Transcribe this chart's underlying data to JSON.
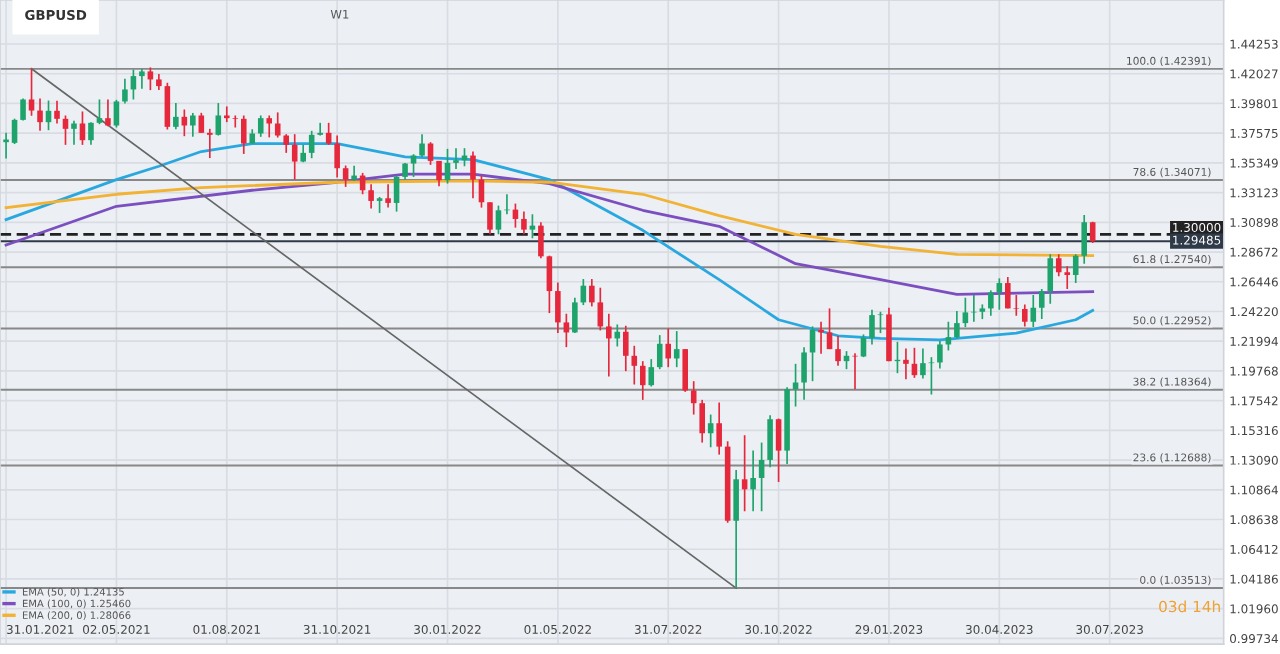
{
  "chart_data": {
    "type": "candlestick",
    "title": "GBPUSD",
    "subtitle": "W1",
    "x": [
      "2021-01-31",
      "2021-02-07",
      "2021-02-14",
      "2021-02-21",
      "2021-02-28",
      "2021-03-07",
      "2021-03-14",
      "2021-03-21",
      "2021-03-28",
      "2021-04-04",
      "2021-04-11",
      "2021-04-18",
      "2021-04-25",
      "2021-05-02",
      "2021-05-09",
      "2021-05-16",
      "2021-05-23",
      "2021-05-30",
      "2021-06-06",
      "2021-06-13",
      "2021-06-20",
      "2021-06-27",
      "2021-07-04",
      "2021-07-11",
      "2021-07-18",
      "2021-07-25",
      "2021-08-01",
      "2021-08-08",
      "2021-08-15",
      "2021-08-22",
      "2021-08-29",
      "2021-09-05",
      "2021-09-12",
      "2021-09-19",
      "2021-09-26",
      "2021-10-03",
      "2021-10-10",
      "2021-10-17",
      "2021-10-24",
      "2021-10-31",
      "2021-11-07",
      "2021-11-14",
      "2021-11-21",
      "2021-11-28",
      "2021-12-05",
      "2021-12-12",
      "2021-12-19",
      "2021-12-26",
      "2022-01-02",
      "2022-01-09",
      "2022-01-16",
      "2022-01-23",
      "2022-01-30",
      "2022-02-06",
      "2022-02-13",
      "2022-02-20",
      "2022-02-27",
      "2022-03-06",
      "2022-03-13",
      "2022-03-20",
      "2022-03-27",
      "2022-04-03",
      "2022-04-10",
      "2022-04-17",
      "2022-04-24",
      "2022-05-01",
      "2022-05-08",
      "2022-05-15",
      "2022-05-22",
      "2022-05-29",
      "2022-06-05",
      "2022-06-12",
      "2022-06-19",
      "2022-06-26",
      "2022-07-03",
      "2022-07-10",
      "2022-07-17",
      "2022-07-24",
      "2022-07-31",
      "2022-08-07",
      "2022-08-14",
      "2022-08-21",
      "2022-08-28",
      "2022-09-04",
      "2022-09-11",
      "2022-09-18",
      "2022-09-25",
      "2022-10-02",
      "2022-10-09",
      "2022-10-16",
      "2022-10-23",
      "2022-10-30",
      "2022-11-06",
      "2022-11-13",
      "2022-11-20",
      "2022-11-27",
      "2022-12-04",
      "2022-12-11",
      "2022-12-18",
      "2022-12-25",
      "2023-01-01",
      "2023-01-08",
      "2023-01-15",
      "2023-01-22",
      "2023-01-29",
      "2023-02-05",
      "2023-02-12",
      "2023-02-19",
      "2023-02-26",
      "2023-03-05",
      "2023-03-12",
      "2023-03-19",
      "2023-03-26",
      "2023-04-02",
      "2023-04-09",
      "2023-04-16",
      "2023-04-23",
      "2023-04-30",
      "2023-05-07",
      "2023-05-14",
      "2023-05-21",
      "2023-05-28",
      "2023-06-04",
      "2023-06-11",
      "2023-06-18",
      "2023-06-25",
      "2023-07-02",
      "2023-07-09",
      "2023-07-16"
    ],
    "ohlc": [
      [
        1.369,
        1.376,
        1.3567,
        1.371
      ],
      [
        1.3685,
        1.3866,
        1.3676,
        1.3857
      ],
      [
        1.3857,
        1.4018,
        1.3852,
        1.401
      ],
      [
        1.401,
        1.4241,
        1.3888,
        1.3927
      ],
      [
        1.3927,
        1.4018,
        1.3775,
        1.384
      ],
      [
        1.384,
        1.4002,
        1.378,
        1.3925
      ],
      [
        1.3925,
        1.4,
        1.383,
        1.3865
      ],
      [
        1.3865,
        1.389,
        1.367,
        1.379
      ],
      [
        1.379,
        1.385,
        1.367,
        1.383
      ],
      [
        1.383,
        1.392,
        1.367,
        1.3705
      ],
      [
        1.3705,
        1.384,
        1.367,
        1.3835
      ],
      [
        1.3835,
        1.401,
        1.3825,
        1.387
      ],
      [
        1.387,
        1.401,
        1.381,
        1.3815
      ],
      [
        1.3815,
        1.4007,
        1.38,
        1.3995
      ],
      [
        1.3995,
        1.4166,
        1.398,
        1.4085
      ],
      [
        1.4085,
        1.4234,
        1.401,
        1.4185
      ],
      [
        1.4185,
        1.424,
        1.409,
        1.422
      ],
      [
        1.422,
        1.425,
        1.408,
        1.416
      ],
      [
        1.416,
        1.42,
        1.408,
        1.411
      ],
      [
        1.411,
        1.4135,
        1.3785,
        1.3805
      ],
      [
        1.3805,
        1.3984,
        1.3787,
        1.388
      ],
      [
        1.388,
        1.3935,
        1.3735,
        1.3815
      ],
      [
        1.3815,
        1.3909,
        1.3731,
        1.389
      ],
      [
        1.389,
        1.391,
        1.376,
        1.376
      ],
      [
        1.376,
        1.379,
        1.3571,
        1.3745
      ],
      [
        1.3745,
        1.3983,
        1.374,
        1.389
      ],
      [
        1.389,
        1.3958,
        1.384,
        1.387
      ],
      [
        1.387,
        1.389,
        1.38,
        1.3865
      ],
      [
        1.3865,
        1.389,
        1.3602,
        1.368
      ],
      [
        1.368,
        1.3787,
        1.368,
        1.3755
      ],
      [
        1.3755,
        1.389,
        1.373,
        1.387
      ],
      [
        1.387,
        1.389,
        1.3726,
        1.383
      ],
      [
        1.383,
        1.3913,
        1.3725,
        1.374
      ],
      [
        1.374,
        1.375,
        1.361,
        1.367
      ],
      [
        1.367,
        1.375,
        1.341,
        1.3545
      ],
      [
        1.3545,
        1.367,
        1.354,
        1.361
      ],
      [
        1.361,
        1.3775,
        1.357,
        1.3745
      ],
      [
        1.3745,
        1.3835,
        1.374,
        1.376
      ],
      [
        1.376,
        1.3835,
        1.367,
        1.368
      ],
      [
        1.368,
        1.374,
        1.3425,
        1.3495
      ],
      [
        1.3495,
        1.3515,
        1.3355,
        1.341
      ],
      [
        1.341,
        1.3513,
        1.34,
        1.344
      ],
      [
        1.344,
        1.346,
        1.33,
        1.333
      ],
      [
        1.333,
        1.3375,
        1.3194,
        1.325
      ],
      [
        1.325,
        1.328,
        1.316,
        1.327
      ],
      [
        1.327,
        1.3375,
        1.32,
        1.3235
      ],
      [
        1.3235,
        1.344,
        1.317,
        1.343
      ],
      [
        1.343,
        1.3535,
        1.341,
        1.353
      ],
      [
        1.353,
        1.36,
        1.343,
        1.359
      ],
      [
        1.359,
        1.375,
        1.358,
        1.368
      ],
      [
        1.368,
        1.369,
        1.352,
        1.355
      ],
      [
        1.355,
        1.355,
        1.336,
        1.3405
      ],
      [
        1.3405,
        1.364,
        1.338,
        1.3535
      ],
      [
        1.3535,
        1.3645,
        1.349,
        1.3555
      ],
      [
        1.3555,
        1.3645,
        1.351,
        1.359
      ],
      [
        1.359,
        1.362,
        1.327,
        1.341
      ],
      [
        1.341,
        1.344,
        1.32,
        1.324
      ],
      [
        1.324,
        1.324,
        1.3,
        1.3035
      ],
      [
        1.3035,
        1.3215,
        1.3,
        1.318
      ],
      [
        1.318,
        1.33,
        1.315,
        1.3185
      ],
      [
        1.3185,
        1.323,
        1.305,
        1.3115
      ],
      [
        1.3115,
        1.317,
        1.3,
        1.3035
      ],
      [
        1.3035,
        1.315,
        1.297,
        1.3065
      ],
      [
        1.3065,
        1.309,
        1.282,
        1.2835
      ],
      [
        1.2835,
        1.284,
        1.241,
        1.2575
      ],
      [
        1.2575,
        1.264,
        1.226,
        1.234
      ],
      [
        1.234,
        1.2405,
        1.2155,
        1.2265
      ],
      [
        1.2265,
        1.2525,
        1.226,
        1.249
      ],
      [
        1.249,
        1.2665,
        1.247,
        1.2615
      ],
      [
        1.2615,
        1.2665,
        1.246,
        1.249
      ],
      [
        1.249,
        1.26,
        1.228,
        1.231
      ],
      [
        1.231,
        1.2405,
        1.1935,
        1.222
      ],
      [
        1.222,
        1.2325,
        1.216,
        1.227
      ],
      [
        1.227,
        1.2315,
        1.1975,
        1.209
      ],
      [
        1.209,
        1.2165,
        1.1875,
        1.2015
      ],
      [
        1.2015,
        1.205,
        1.176,
        1.187
      ],
      [
        1.187,
        1.2065,
        1.186,
        1.2005
      ],
      [
        1.2005,
        1.2245,
        1.199,
        1.218
      ],
      [
        1.218,
        1.2295,
        1.2005,
        1.207
      ],
      [
        1.207,
        1.2275,
        1.2005,
        1.214
      ],
      [
        1.214,
        1.214,
        1.182,
        1.183
      ],
      [
        1.183,
        1.19,
        1.165,
        1.1735
      ],
      [
        1.1735,
        1.176,
        1.144,
        1.151
      ],
      [
        1.151,
        1.165,
        1.1405,
        1.1585
      ],
      [
        1.1585,
        1.174,
        1.135,
        1.141
      ],
      [
        1.141,
        1.145,
        1.084,
        1.0855
      ],
      [
        1.0855,
        1.1235,
        1.035,
        1.1165
      ],
      [
        1.1165,
        1.1495,
        1.0925,
        1.109
      ],
      [
        1.109,
        1.138,
        1.0925,
        1.1175
      ],
      [
        1.1175,
        1.144,
        1.0925,
        1.131
      ],
      [
        1.131,
        1.1645,
        1.1255,
        1.1615
      ],
      [
        1.1615,
        1.162,
        1.1145,
        1.138
      ],
      [
        1.138,
        1.1855,
        1.128,
        1.184
      ],
      [
        1.184,
        1.203,
        1.171,
        1.189
      ],
      [
        1.189,
        1.2155,
        1.176,
        1.2115
      ],
      [
        1.2115,
        1.231,
        1.19,
        1.2285
      ],
      [
        1.2285,
        1.2345,
        1.2105,
        1.2265
      ],
      [
        1.2265,
        1.2445,
        1.214,
        1.214
      ],
      [
        1.214,
        1.224,
        1.2015,
        1.205
      ],
      [
        1.205,
        1.2125,
        1.199,
        1.209
      ],
      [
        1.209,
        1.211,
        1.184,
        1.2085
      ],
      [
        1.2085,
        1.225,
        1.208,
        1.2225
      ],
      [
        1.2225,
        1.2435,
        1.2175,
        1.2395
      ],
      [
        1.2395,
        1.242,
        1.226,
        1.24
      ],
      [
        1.24,
        1.245,
        1.205,
        1.205
      ],
      [
        1.205,
        1.2195,
        1.196,
        1.206
      ],
      [
        1.206,
        1.2145,
        1.1915,
        1.203
      ],
      [
        1.203,
        1.215,
        1.1925,
        1.1945
      ],
      [
        1.1945,
        1.2145,
        1.192,
        1.2035
      ],
      [
        1.2035,
        1.208,
        1.18,
        1.204
      ],
      [
        1.204,
        1.22,
        1.1995,
        1.2175
      ],
      [
        1.2175,
        1.2345,
        1.213,
        1.223
      ],
      [
        1.223,
        1.2425,
        1.222,
        1.2335
      ],
      [
        1.2335,
        1.2525,
        1.2305,
        1.2415
      ],
      [
        1.2415,
        1.2545,
        1.2345,
        1.242
      ],
      [
        1.242,
        1.2475,
        1.2365,
        1.2445
      ],
      [
        1.2445,
        1.258,
        1.239,
        1.2565
      ],
      [
        1.2565,
        1.267,
        1.2435,
        1.2635
      ],
      [
        1.2635,
        1.268,
        1.2445,
        1.2445
      ],
      [
        1.2445,
        1.2545,
        1.239,
        1.244
      ],
      [
        1.244,
        1.2475,
        1.231,
        1.2345
      ],
      [
        1.2345,
        1.2545,
        1.2305,
        1.245
      ],
      [
        1.245,
        1.259,
        1.2365,
        1.2575
      ],
      [
        1.2575,
        1.285,
        1.248,
        1.282
      ],
      [
        1.282,
        1.285,
        1.2685,
        1.2715
      ],
      [
        1.2715,
        1.276,
        1.259,
        1.2695
      ],
      [
        1.2695,
        1.285,
        1.2635,
        1.284
      ],
      [
        1.284,
        1.3145,
        1.278,
        1.309
      ],
      [
        1.309,
        1.3095,
        1.2935,
        1.2948
      ]
    ],
    "colors": [
      "#1ea36c",
      "#1ea36c",
      "#1ea36c",
      "#e5283c",
      "#e5283c",
      "#1ea36c",
      "#e5283c",
      "#e5283c",
      "#1ea36c",
      "#e5283c",
      "#1ea36c",
      "#1ea36c",
      "#e5283c",
      "#1ea36c",
      "#1ea36c",
      "#1ea36c",
      "#1ea36c",
      "#e5283c",
      "#e5283c",
      "#e5283c",
      "#1ea36c",
      "#e5283c",
      "#1ea36c",
      "#e5283c",
      "#e5283c",
      "#1ea36c",
      "#e5283c",
      "#e5283c",
      "#e5283c",
      "#1ea36c",
      "#1ea36c",
      "#e5283c",
      "#e5283c",
      "#e5283c",
      "#e5283c",
      "#1ea36c",
      "#1ea36c",
      "#1ea36c",
      "#e5283c",
      "#e5283c",
      "#e5283c",
      "#1ea36c",
      "#e5283c",
      "#e5283c",
      "#1ea36c",
      "#e5283c",
      "#1ea36c",
      "#1ea36c",
      "#1ea36c",
      "#1ea36c",
      "#e5283c",
      "#e5283c",
      "#1ea36c",
      "#1ea36c",
      "#1ea36c",
      "#e5283c",
      "#e5283c",
      "#e5283c",
      "#1ea36c",
      "#1ea36c",
      "#e5283c",
      "#e5283c",
      "#1ea36c",
      "#e5283c",
      "#e5283c",
      "#e5283c",
      "#e5283c",
      "#1ea36c",
      "#1ea36c",
      "#e5283c",
      "#e5283c",
      "#e5283c",
      "#1ea36c",
      "#e5283c",
      "#e5283c",
      "#e5283c",
      "#1ea36c",
      "#1ea36c",
      "#e5283c",
      "#1ea36c",
      "#e5283c",
      "#e5283c",
      "#e5283c",
      "#1ea36c",
      "#e5283c",
      "#e5283c",
      "#1ea36c",
      "#e5283c",
      "#1ea36c",
      "#1ea36c",
      "#1ea36c",
      "#e5283c",
      "#1ea36c",
      "#1ea36c",
      "#1ea36c",
      "#1ea36c",
      "#e5283c",
      "#e5283c",
      "#e5283c",
      "#1ea36c",
      "#e5283c",
      "#1ea36c",
      "#1ea36c",
      "#1ea36c",
      "#e5283c",
      "#1ea36c",
      "#e5283c",
      "#e5283c",
      "#1ea36c",
      "#1ea36c",
      "#1ea36c",
      "#1ea36c",
      "#1ea36c",
      "#1ea36c",
      "#1ea36c",
      "#1ea36c",
      "#1ea36c",
      "#1ea36c",
      "#e5283c",
      "#e5283c",
      "#e5283c",
      "#1ea36c",
      "#1ea36c",
      "#1ea36c",
      "#e5283c",
      "#e5283c",
      "#1ea36c",
      "#1ea36c",
      "#e5283c"
    ],
    "series": [
      {
        "type": "line",
        "name": "EMA (50, 0) 1.24135",
        "color": "#29a8e0",
        "x": [
          "2021-01-31",
          "2021-05-02",
          "2021-06-06",
          "2021-07-11",
          "2021-08-22",
          "2021-10-31",
          "2021-12-26",
          "2022-02-20",
          "2022-04-24",
          "2022-07-10",
          "2022-09-11",
          "2022-10-30",
          "2022-12-18",
          "2023-01-22",
          "2023-03-12",
          "2023-05-14",
          "2023-07-02",
          "2023-07-16"
        ],
        "values": [
          1.311,
          1.341,
          1.351,
          1.362,
          1.368,
          1.368,
          1.358,
          1.356,
          1.341,
          1.303,
          1.266,
          1.236,
          1.224,
          1.222,
          1.221,
          1.226,
          1.236,
          1.243
        ]
      },
      {
        "type": "line",
        "name": "EMA (100, 0) 1.25460",
        "color": "#7b4fbf",
        "x": [
          "2021-01-31",
          "2021-05-02",
          "2021-08-22",
          "2021-10-31",
          "2021-12-26",
          "2022-02-20",
          "2022-04-24",
          "2022-07-10",
          "2022-09-11",
          "2022-11-13",
          "2023-01-22",
          "2023-03-26",
          "2023-07-16"
        ],
        "values": [
          1.292,
          1.321,
          1.333,
          1.339,
          1.345,
          1.345,
          1.338,
          1.318,
          1.306,
          1.278,
          1.266,
          1.255,
          1.257
        ]
      },
      {
        "type": "line",
        "name": "EMA (200, 0) 1.28066",
        "color": "#f2b233",
        "x": [
          "2021-01-31",
          "2021-05-02",
          "2021-07-11",
          "2021-10-31",
          "2022-02-20",
          "2022-04-24",
          "2022-07-10",
          "2022-09-11",
          "2022-11-13",
          "2023-01-22",
          "2023-03-26",
          "2023-07-16"
        ],
        "values": [
          1.32,
          1.33,
          1.335,
          1.339,
          1.34,
          1.339,
          1.33,
          1.314,
          1.3,
          1.291,
          1.285,
          1.284
        ]
      },
      {
        "type": "line",
        "color": "#666666",
        "x": [
          "2021-02-21",
          "2022-09-25"
        ],
        "values": [
          1.424,
          1.035
        ]
      }
    ],
    "ref_lines": [
      {
        "axis": "y",
        "value": 1.42391,
        "label": "100.0 (1.42391)",
        "color": "#888888"
      },
      {
        "axis": "y",
        "value": 1.34071,
        "label": "78.6 (1.34071)",
        "color": "#888888"
      },
      {
        "axis": "y",
        "value": 1.2754,
        "label": "61.8 (1.27540)",
        "color": "#888888"
      },
      {
        "axis": "y",
        "value": 1.22952,
        "label": "50.0 (1.22952)",
        "color": "#888888"
      },
      {
        "axis": "y",
        "value": 1.18364,
        "label": "38.2 (1.18364)",
        "color": "#888888"
      },
      {
        "axis": "y",
        "value": 1.12688,
        "label": "23.6 (1.12688)",
        "color": "#888888"
      },
      {
        "axis": "y",
        "value": 1.03513,
        "label": "0.0 (1.03513)",
        "color": "#888888"
      },
      {
        "axis": "y",
        "value": 1.3,
        "label": "1.30000",
        "color": "#222222",
        "line_style": "dashed"
      },
      {
        "axis": "y",
        "value": 1.29485,
        "label": "1.29485",
        "color": "#2f3a48"
      }
    ],
    "xlim": [
      "2021-01-26",
      "2023-11-01"
    ],
    "xticks": [
      {
        "value": "2021-01-31",
        "label": "31.01.2021"
      },
      {
        "value": "2021-05-02",
        "label": "02.05.2021"
      },
      {
        "value": "2021-08-01",
        "label": "01.08.2021"
      },
      {
        "value": "2021-10-31",
        "label": "31.10.2021"
      },
      {
        "value": "2022-01-30",
        "label": "30.01.2022"
      },
      {
        "value": "2022-05-01",
        "label": "01.05.2022"
      },
      {
        "value": "2022-07-31",
        "label": "31.07.2022"
      },
      {
        "value": "2022-10-30",
        "label": "30.10.2022"
      },
      {
        "value": "2023-01-29",
        "label": "29.01.2023"
      },
      {
        "value": "2023-04-30",
        "label": "30.04.2023"
      },
      {
        "value": "2023-07-30",
        "label": "30.07.2023"
      }
    ],
    "ylim": [
      0.993,
      1.4755
    ],
    "yticks": [
      0.99734,
      {
        "value": 1.0196,
        "label": "1.01960"
      },
      1.04186,
      1.06412,
      1.08638,
      1.10864,
      {
        "value": 1.1309,
        "label": "1.13090"
      },
      1.15316,
      1.17542,
      1.19768,
      1.21994,
      {
        "value": 1.2422,
        "label": "1.24220"
      },
      1.26446,
      1.28672,
      1.30898,
      1.33123,
      1.35349,
      1.37575,
      1.39801,
      1.42027,
      1.44253
    ],
    "grid": true,
    "legend": "bottom left",
    "annotations": [
      {
        "text": "03d 14h"
      }
    ]
  }
}
